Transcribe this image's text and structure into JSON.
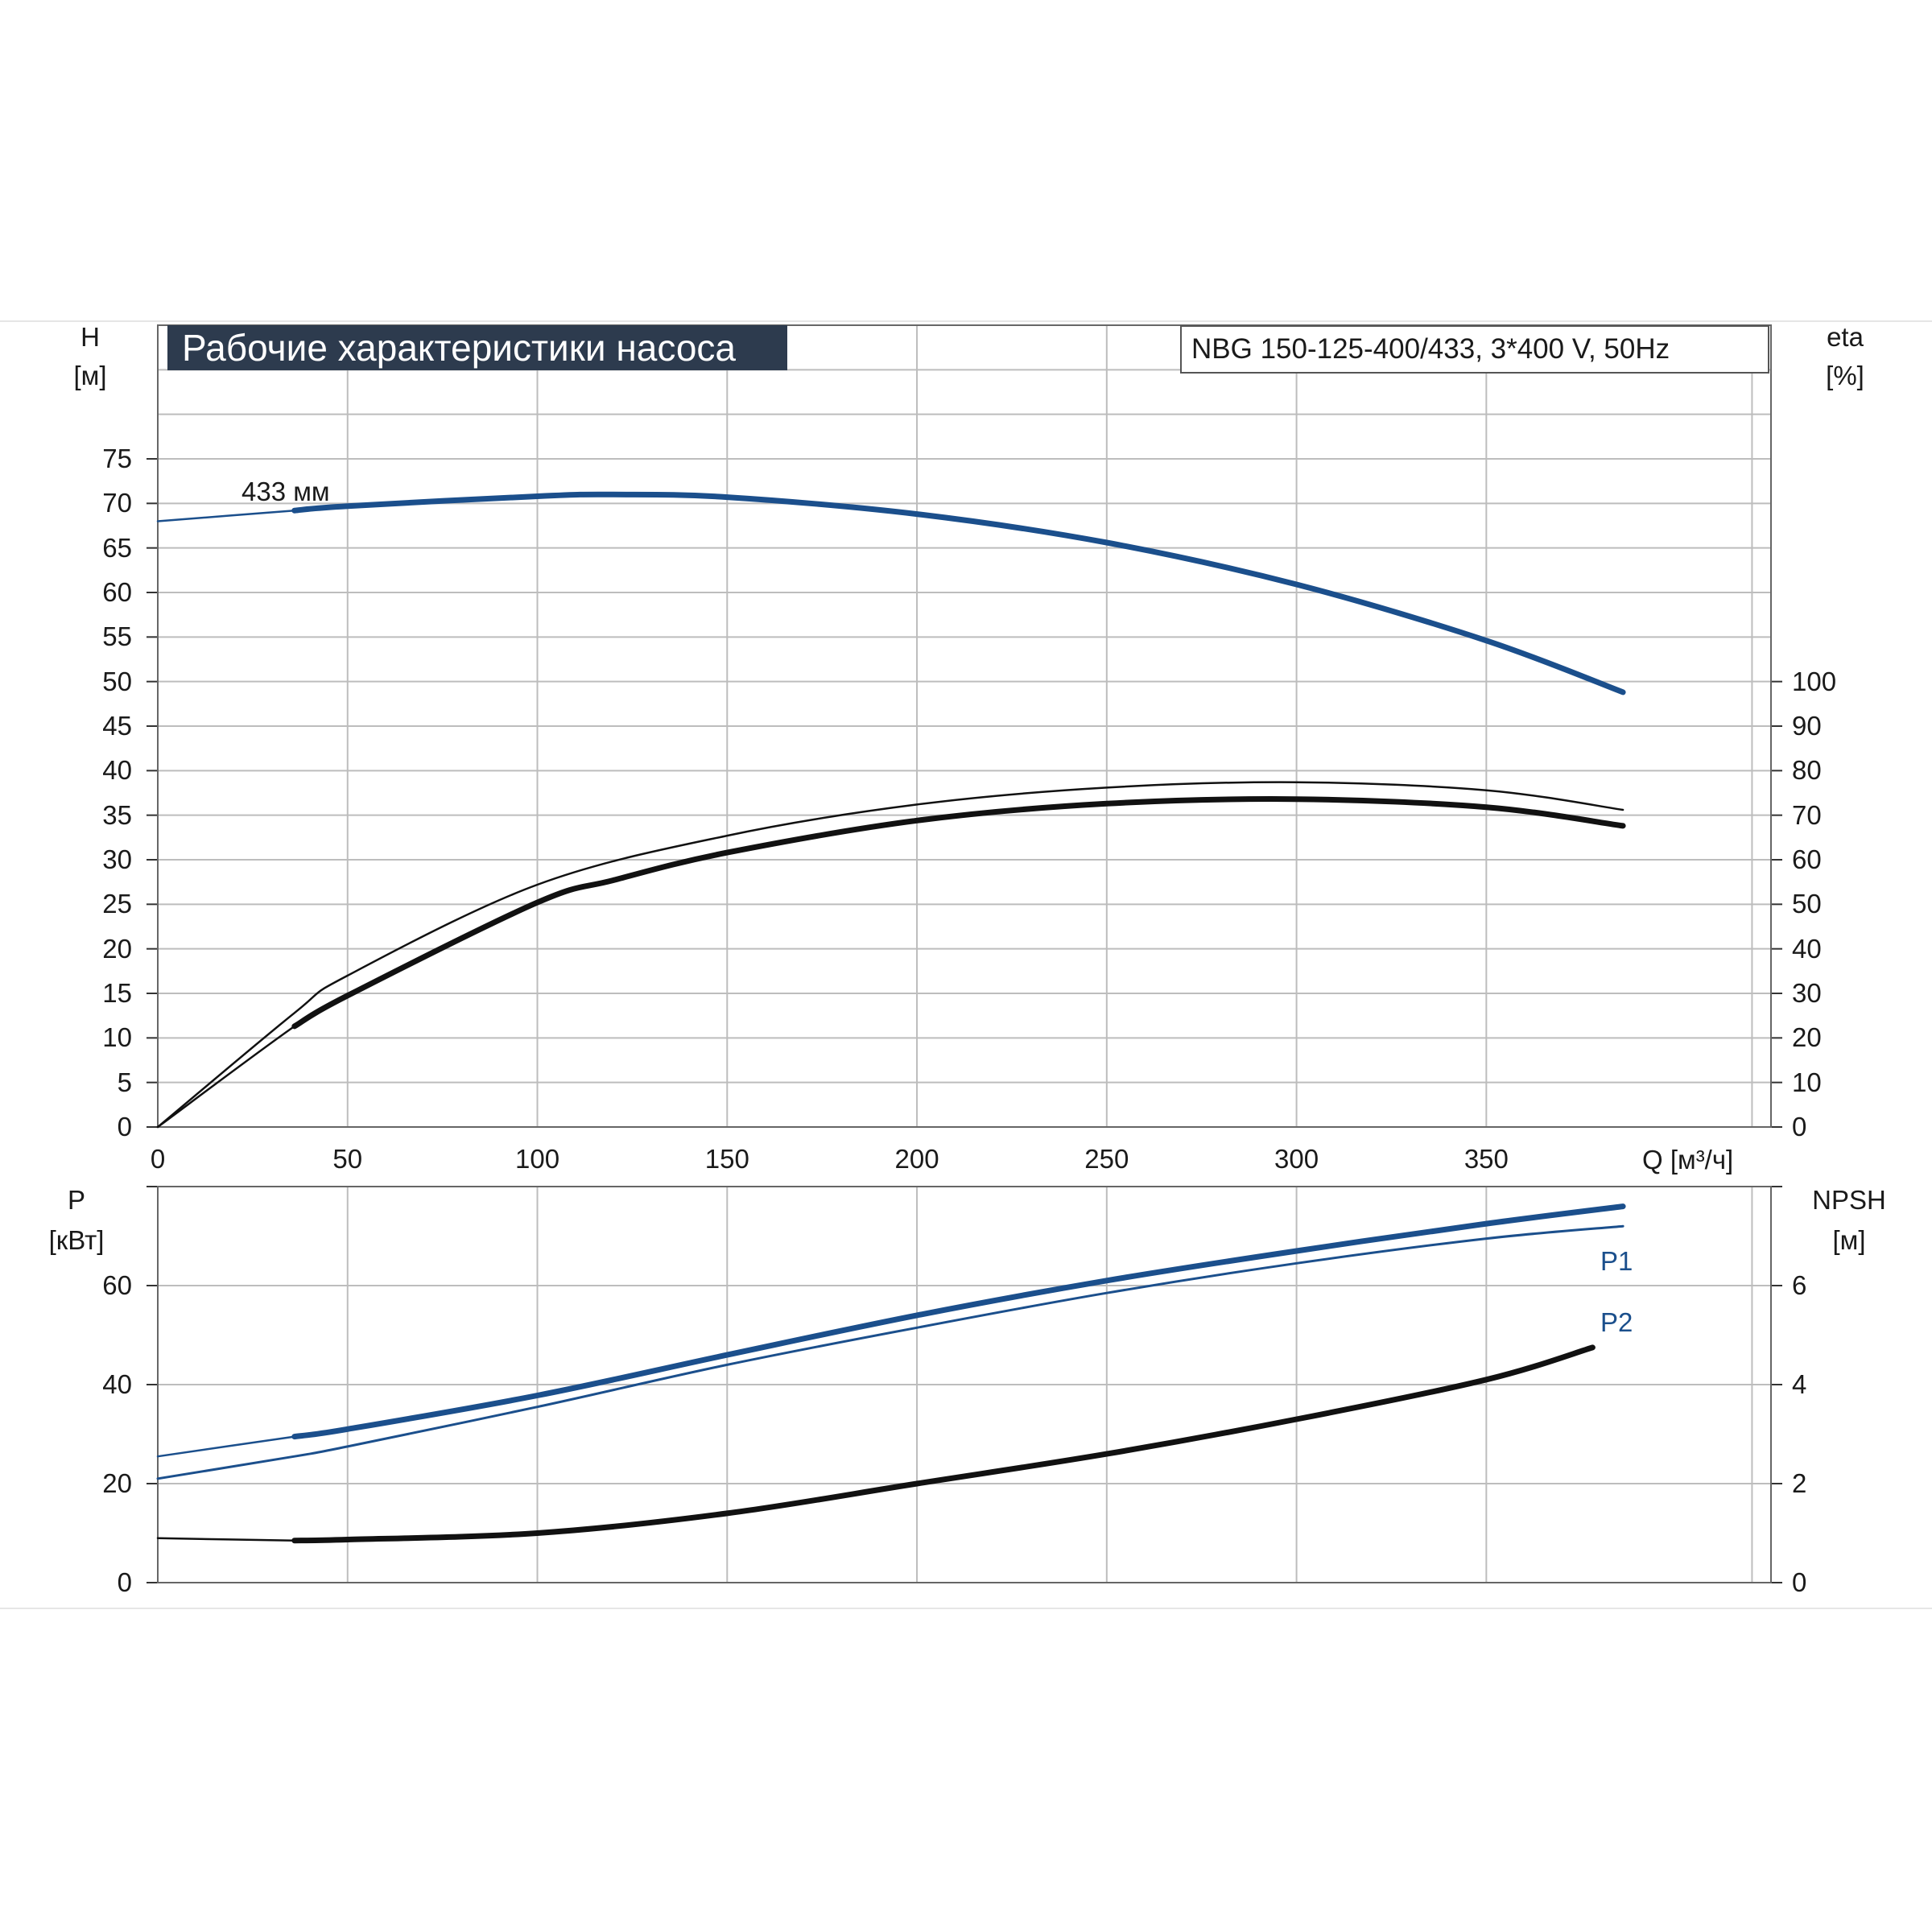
{
  "title": "Рабочие характеристики насоса",
  "model": "NBG 150-125-400/433, 3*400 V, 50Hz",
  "colors": {
    "blue": "#1b4f8c",
    "black": "#111111",
    "grid": "#bdbdbd",
    "title_bg": "#2d3b4e"
  },
  "chart_data": [
    {
      "type": "line",
      "name": "upper",
      "ylabel_left": [
        "H",
        "[м]"
      ],
      "ylabel_right": [
        "eta",
        "[%]"
      ],
      "xlabel": "Q [м³/ч]",
      "xlim": [
        0,
        425
      ],
      "ylim": [
        0,
        90
      ],
      "ylim_right": [
        0,
        180
      ],
      "x_ticks": [
        0,
        50,
        100,
        150,
        200,
        250,
        300,
        350
      ],
      "y_ticks_left": [
        0,
        5,
        10,
        15,
        20,
        25,
        30,
        35,
        40,
        45,
        50,
        55,
        60,
        65,
        70,
        75
      ],
      "y_ticks_right": [
        0,
        10,
        20,
        30,
        40,
        50,
        60,
        70,
        80,
        90,
        100
      ],
      "grid": true,
      "annotation": "433 мм",
      "series": [
        {
          "id": "H",
          "axis": "left",
          "color": "#1b4f8c",
          "x": [
            0,
            36,
            50,
            100,
            120,
            150,
            200,
            250,
            300,
            350,
            386
          ],
          "y": [
            68.0,
            69.2,
            69.7,
            70.8,
            71.0,
            70.7,
            68.8,
            65.6,
            60.9,
            54.6,
            48.8
          ]
        },
        {
          "id": "eta",
          "axis": "right",
          "color": "#111111",
          "x": [
            0,
            36,
            50,
            100,
            120,
            150,
            200,
            250,
            300,
            350,
            386
          ],
          "y": [
            0,
            22.6,
            29.5,
            50.4,
            55.4,
            61.6,
            68.8,
            72.6,
            73.6,
            71.8,
            67.6
          ]
        },
        {
          "id": "eta-thin",
          "axis": "right",
          "color": "#111111",
          "x": [
            0,
            36,
            50,
            100,
            150,
            200,
            250,
            300,
            350,
            386
          ],
          "y": [
            0,
            25.6,
            34.0,
            54.4,
            65.4,
            72.4,
            76.2,
            77.4,
            75.6,
            71.2
          ]
        }
      ]
    },
    {
      "type": "line",
      "name": "lower",
      "ylabel_left": [
        "P",
        "[кВт]"
      ],
      "ylabel_right": [
        "NPSH",
        "[м]"
      ],
      "xlim": [
        0,
        425
      ],
      "ylim": [
        0,
        80
      ],
      "ylim_right": [
        0,
        8
      ],
      "y_ticks_left": [
        0,
        20,
        40,
        60
      ],
      "y_ticks_right": [
        0,
        2,
        4,
        6
      ],
      "grid": true,
      "series": [
        {
          "id": "P1",
          "label": "P1",
          "axis": "left",
          "color": "#1b4f8c",
          "x": [
            0,
            36,
            50,
            100,
            150,
            200,
            250,
            300,
            350,
            386
          ],
          "y": [
            25.5,
            29.5,
            31.0,
            37.8,
            46.0,
            54.0,
            61.0,
            67.0,
            72.5,
            76.0
          ]
        },
        {
          "id": "P2",
          "label": "P2",
          "axis": "left",
          "color": "#1b4f8c",
          "x": [
            0,
            36,
            50,
            100,
            150,
            200,
            250,
            300,
            350,
            386
          ],
          "y": [
            21.0,
            25.5,
            27.5,
            35.5,
            44.0,
            51.5,
            58.5,
            64.5,
            69.5,
            72.0
          ]
        },
        {
          "id": "NPSH",
          "axis": "right",
          "color": "#111111",
          "x": [
            0,
            36,
            50,
            100,
            150,
            200,
            250,
            300,
            350,
            378
          ],
          "y": [
            0.9,
            0.85,
            0.87,
            1.0,
            1.4,
            2.0,
            2.6,
            3.3,
            4.1,
            4.75
          ]
        }
      ]
    }
  ]
}
